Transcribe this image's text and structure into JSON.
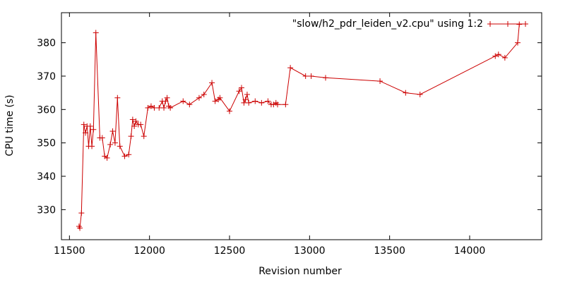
{
  "chart_data": {
    "type": "line",
    "title": "",
    "xlabel": "Revision number",
    "ylabel": "CPU time (s)",
    "xlim": [
      11450,
      14450
    ],
    "ylim": [
      321,
      389
    ],
    "x_ticks": [
      11500,
      12000,
      12500,
      13000,
      13500,
      14000
    ],
    "y_ticks": [
      330,
      340,
      350,
      360,
      370,
      380
    ],
    "grid": false,
    "legend_position": "top-right",
    "series": [
      {
        "name": "\"slow/h2_pdr_leiden_v2.cpu\" using 1:2",
        "color": "#cc0000",
        "marker": "plus",
        "points": [
          [
            11560,
            325
          ],
          [
            11565,
            324.5
          ],
          [
            11575,
            329
          ],
          [
            11590,
            355.5
          ],
          [
            11600,
            353
          ],
          [
            11610,
            355
          ],
          [
            11620,
            349
          ],
          [
            11630,
            355
          ],
          [
            11640,
            349
          ],
          [
            11650,
            354
          ],
          [
            11665,
            383
          ],
          [
            11690,
            351.5
          ],
          [
            11705,
            351.5
          ],
          [
            11720,
            346
          ],
          [
            11735,
            345.5
          ],
          [
            11755,
            349.5
          ],
          [
            11770,
            353.5
          ],
          [
            11785,
            350
          ],
          [
            11800,
            363.5
          ],
          [
            11815,
            349
          ],
          [
            11845,
            346
          ],
          [
            11870,
            346.5
          ],
          [
            11885,
            352
          ],
          [
            11895,
            357
          ],
          [
            11905,
            355
          ],
          [
            11915,
            356.5
          ],
          [
            11930,
            355.5
          ],
          [
            11945,
            355.5
          ],
          [
            11965,
            352
          ],
          [
            11990,
            360.5
          ],
          [
            12010,
            361
          ],
          [
            12030,
            360.5
          ],
          [
            12060,
            360.5
          ],
          [
            12080,
            362.5
          ],
          [
            12090,
            360.5
          ],
          [
            12100,
            362.5
          ],
          [
            12110,
            363.5
          ],
          [
            12120,
            361
          ],
          [
            12130,
            360.5
          ],
          [
            12210,
            362.5
          ],
          [
            12250,
            361.5
          ],
          [
            12310,
            363.5
          ],
          [
            12340,
            364.5
          ],
          [
            12390,
            368
          ],
          [
            12410,
            362.5
          ],
          [
            12430,
            363
          ],
          [
            12440,
            363.5
          ],
          [
            12500,
            359.5
          ],
          [
            12560,
            365.5
          ],
          [
            12575,
            366.5
          ],
          [
            12590,
            362
          ],
          [
            12600,
            363
          ],
          [
            12610,
            364.5
          ],
          [
            12620,
            362
          ],
          [
            12660,
            362.5
          ],
          [
            12700,
            362
          ],
          [
            12740,
            362.5
          ],
          [
            12760,
            361.5
          ],
          [
            12775,
            361.5
          ],
          [
            12790,
            362
          ],
          [
            12800,
            361.5
          ],
          [
            12850,
            361.5
          ],
          [
            12880,
            372.5
          ],
          [
            12975,
            370
          ],
          [
            13010,
            370
          ],
          [
            13100,
            369.5
          ],
          [
            13440,
            368.5
          ],
          [
            13600,
            365
          ],
          [
            13690,
            364.5
          ],
          [
            14160,
            376
          ],
          [
            14180,
            376.5
          ],
          [
            14220,
            375.5
          ],
          [
            14300,
            380
          ],
          [
            14310,
            385.5
          ]
        ]
      }
    ]
  }
}
